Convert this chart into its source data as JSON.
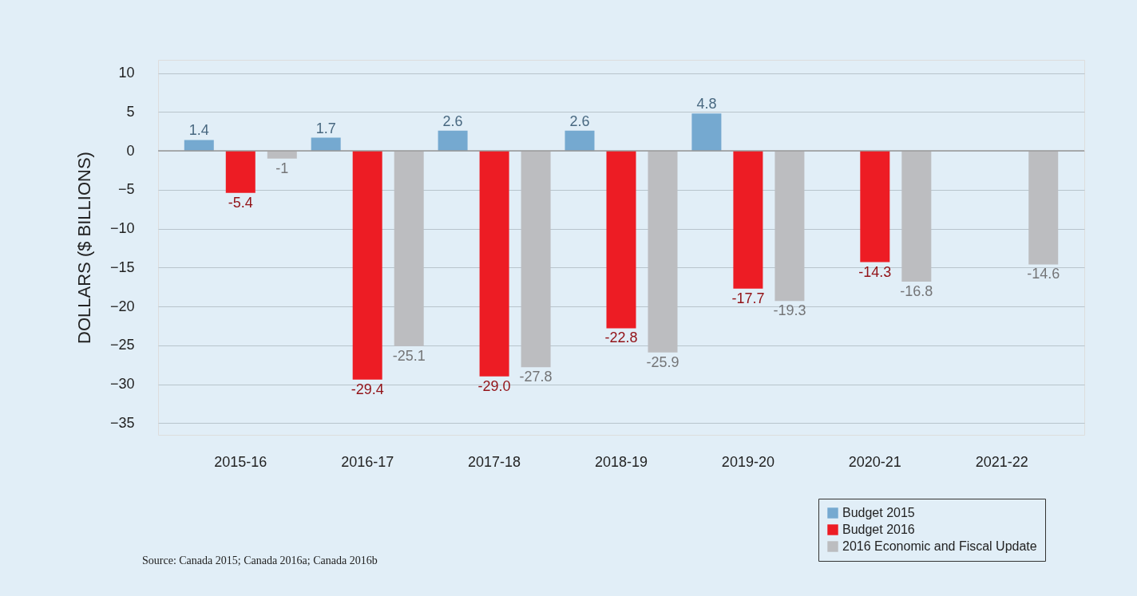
{
  "chart_data": {
    "type": "bar",
    "categories": [
      "2015-16",
      "2016-17",
      "2017-18",
      "2018-19",
      "2019-20",
      "2020-21",
      "2021-22"
    ],
    "series": [
      {
        "name": "Budget 2015",
        "color": "#75a9d0",
        "values": [
          1.4,
          1.7,
          2.6,
          2.6,
          4.8,
          null,
          null
        ],
        "value_labels": [
          "1.4",
          "1.7",
          "2.6",
          "2.6",
          "4.8",
          null,
          null
        ]
      },
      {
        "name": "Budget 2016",
        "color": "#ed1c24",
        "values": [
          -5.4,
          -29.4,
          -29.0,
          -22.8,
          -17.7,
          -14.3,
          null
        ],
        "value_labels": [
          "-5.4",
          "-29.4",
          "-29.0",
          "-22.8",
          "-17.7",
          "-14.3",
          null
        ]
      },
      {
        "name": "2016 Economic and Fiscal Update",
        "color": "#bcbdc0",
        "values": [
          -1,
          -25.1,
          -27.8,
          -25.9,
          -19.3,
          -16.8,
          -14.6
        ],
        "value_labels": [
          "-1",
          "-25.1",
          "-27.8",
          "-25.9",
          "-19.3",
          "-16.8",
          "-14.6"
        ]
      }
    ],
    "ylabel": "DOLLARS ($ BILLIONS)",
    "ylim": [
      -36.5,
      11.7
    ],
    "yticks": [
      -35,
      -30,
      -25,
      -20,
      -15,
      -10,
      -5,
      0,
      5,
      10
    ],
    "grid": "y",
    "ref_lines": [
      {
        "axis": "y",
        "value": 0,
        "color": "#999999"
      }
    ],
    "legend": "bottom right",
    "annotations": [
      "Source: Canada 2015; Canada 2016a; Canada 2016b"
    ]
  }
}
